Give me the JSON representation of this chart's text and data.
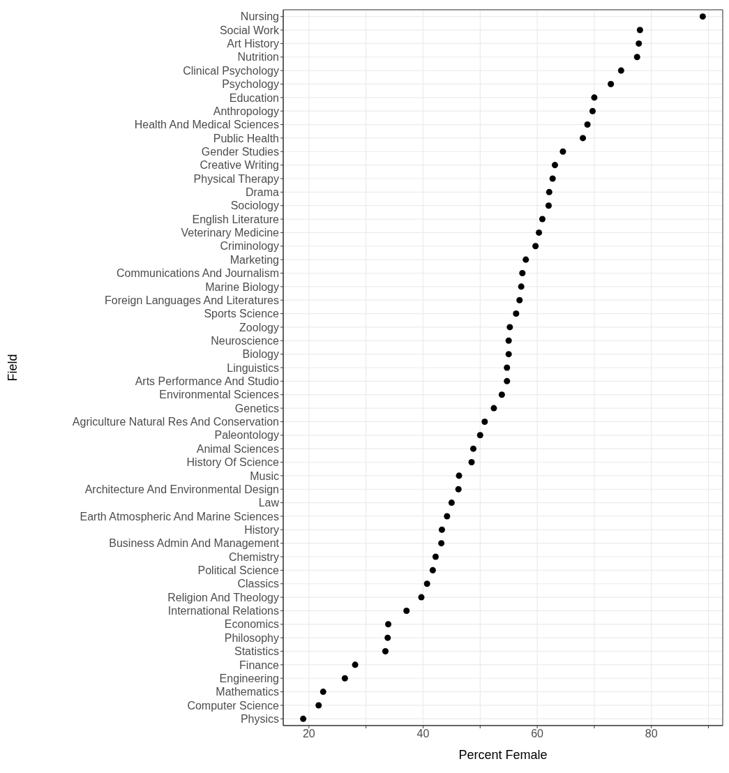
{
  "chart_data": {
    "type": "scatter",
    "xlabel": "Percent Female",
    "ylabel": "Field",
    "categories": [
      "Nursing",
      "Social Work",
      "Art History",
      "Nutrition",
      "Clinical Psychology",
      "Psychology",
      "Education",
      "Anthropology",
      "Health And Medical Sciences",
      "Public Health",
      "Gender Studies",
      "Creative Writing",
      "Physical Therapy",
      "Drama",
      "Sociology",
      "English Literature",
      "Veterinary Medicine",
      "Criminology",
      "Marketing",
      "Communications And Journalism",
      "Marine Biology",
      "Foreign Languages And Literatures",
      "Sports Science",
      "Zoology",
      "Neuroscience",
      "Biology",
      "Linguistics",
      "Arts Performance And Studio",
      "Environmental Sciences",
      "Genetics",
      "Agriculture Natural Res And Conservation",
      "Paleontology",
      "Animal Sciences",
      "History Of Science",
      "Music",
      "Architecture And Environmental Design",
      "Law",
      "Earth Atmospheric And Marine Sciences",
      "History",
      "Business Admin And Management",
      "Chemistry",
      "Political Science",
      "Classics",
      "Religion And Theology",
      "International Relations",
      "Economics",
      "Philosophy",
      "Statistics",
      "Finance",
      "Engineering",
      "Mathematics",
      "Computer Science",
      "Physics"
    ],
    "orientation": "horizontal",
    "series": [
      {
        "color": "#000000",
        "values": [
          89.0,
          78.0,
          77.8,
          77.5,
          74.7,
          72.9,
          70.0,
          69.7,
          68.8,
          68.0,
          64.5,
          63.1,
          62.7,
          62.1,
          62.0,
          60.9,
          60.3,
          59.7,
          58.0,
          57.4,
          57.2,
          56.9,
          56.3,
          55.2,
          55.0,
          55.0,
          54.7,
          54.7,
          53.8,
          52.4,
          50.8,
          50.0,
          48.8,
          48.5,
          46.3,
          46.2,
          45.0,
          44.2,
          43.3,
          43.2,
          42.2,
          41.7,
          40.7,
          39.7,
          37.1,
          33.9,
          33.8,
          33.4,
          28.1,
          26.3,
          22.5,
          21.7,
          19.0
        ]
      }
    ],
    "xlim": [
      15.5,
      92.5
    ],
    "xticks": [
      20,
      {
        "value": 30,
        "label": null
      },
      40,
      {
        "value": 50,
        "label": null
      },
      60,
      {
        "value": 70,
        "label": null
      },
      80,
      {
        "value": 90,
        "label": null
      }
    ],
    "grid": true,
    "marker": "circle",
    "legend": false
  }
}
